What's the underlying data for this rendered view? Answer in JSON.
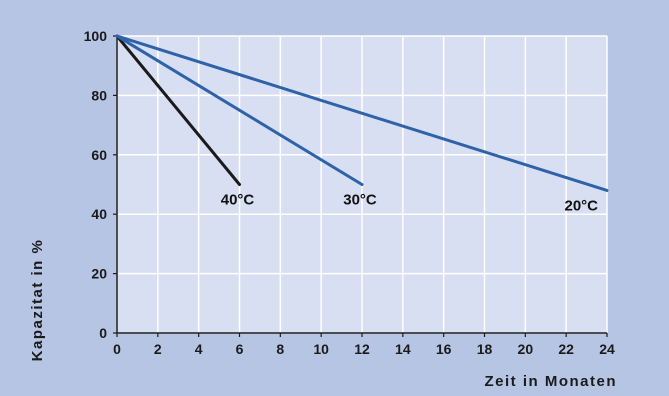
{
  "chart_data": {
    "type": "line",
    "title": "",
    "xlabel": "Zeit in Monaten",
    "ylabel": "Kapazitat in %",
    "xlim": [
      0,
      24
    ],
    "ylim": [
      0,
      100
    ],
    "xticks": [
      "0",
      "2",
      "4",
      "6",
      "8",
      "10",
      "12",
      "14",
      "16",
      "18",
      "20",
      "22",
      "24"
    ],
    "yticks": [
      "0",
      "20",
      "40",
      "60",
      "80",
      "100"
    ],
    "grid": true,
    "legend": "inline labels near line ends",
    "colors": {
      "background": "#b7c5e5",
      "plot_area": "#d9dff2",
      "grid": "#ffffff",
      "text": "#1a1a1a"
    },
    "series": [
      {
        "name": "40°C",
        "color": "#1a1a1a",
        "x": [
          0,
          6
        ],
        "y": [
          100,
          50
        ]
      },
      {
        "name": "30°C",
        "color": "#2e63a9",
        "x": [
          0,
          12
        ],
        "y": [
          100,
          50
        ]
      },
      {
        "name": "20°C",
        "color": "#2e63a9",
        "x": [
          0,
          24
        ],
        "y": [
          100,
          48
        ]
      }
    ]
  }
}
